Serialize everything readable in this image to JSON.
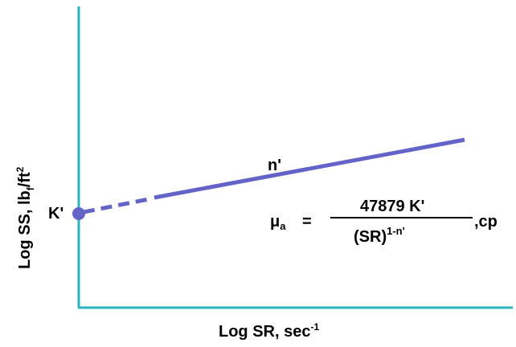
{
  "y_axis_label": {
    "main": "Log SS, lb",
    "sub": "f",
    "tail": "/ft",
    "sup": "2"
  },
  "x_axis_label": {
    "main": "Log SR, sec",
    "sup": "-1"
  },
  "intercept_label": "K'",
  "slope_label": "n'",
  "equation": {
    "lhs_symbol": "μ",
    "lhs_sub": "a",
    "equals": "=",
    "numerator": "47879 K'",
    "denominator_base": "(SR)",
    "denominator_exp": "1-n'",
    "units": ",cp"
  },
  "colors": {
    "axis": "#2bb3c0",
    "line": "#6464c8",
    "text": "#000000"
  }
}
